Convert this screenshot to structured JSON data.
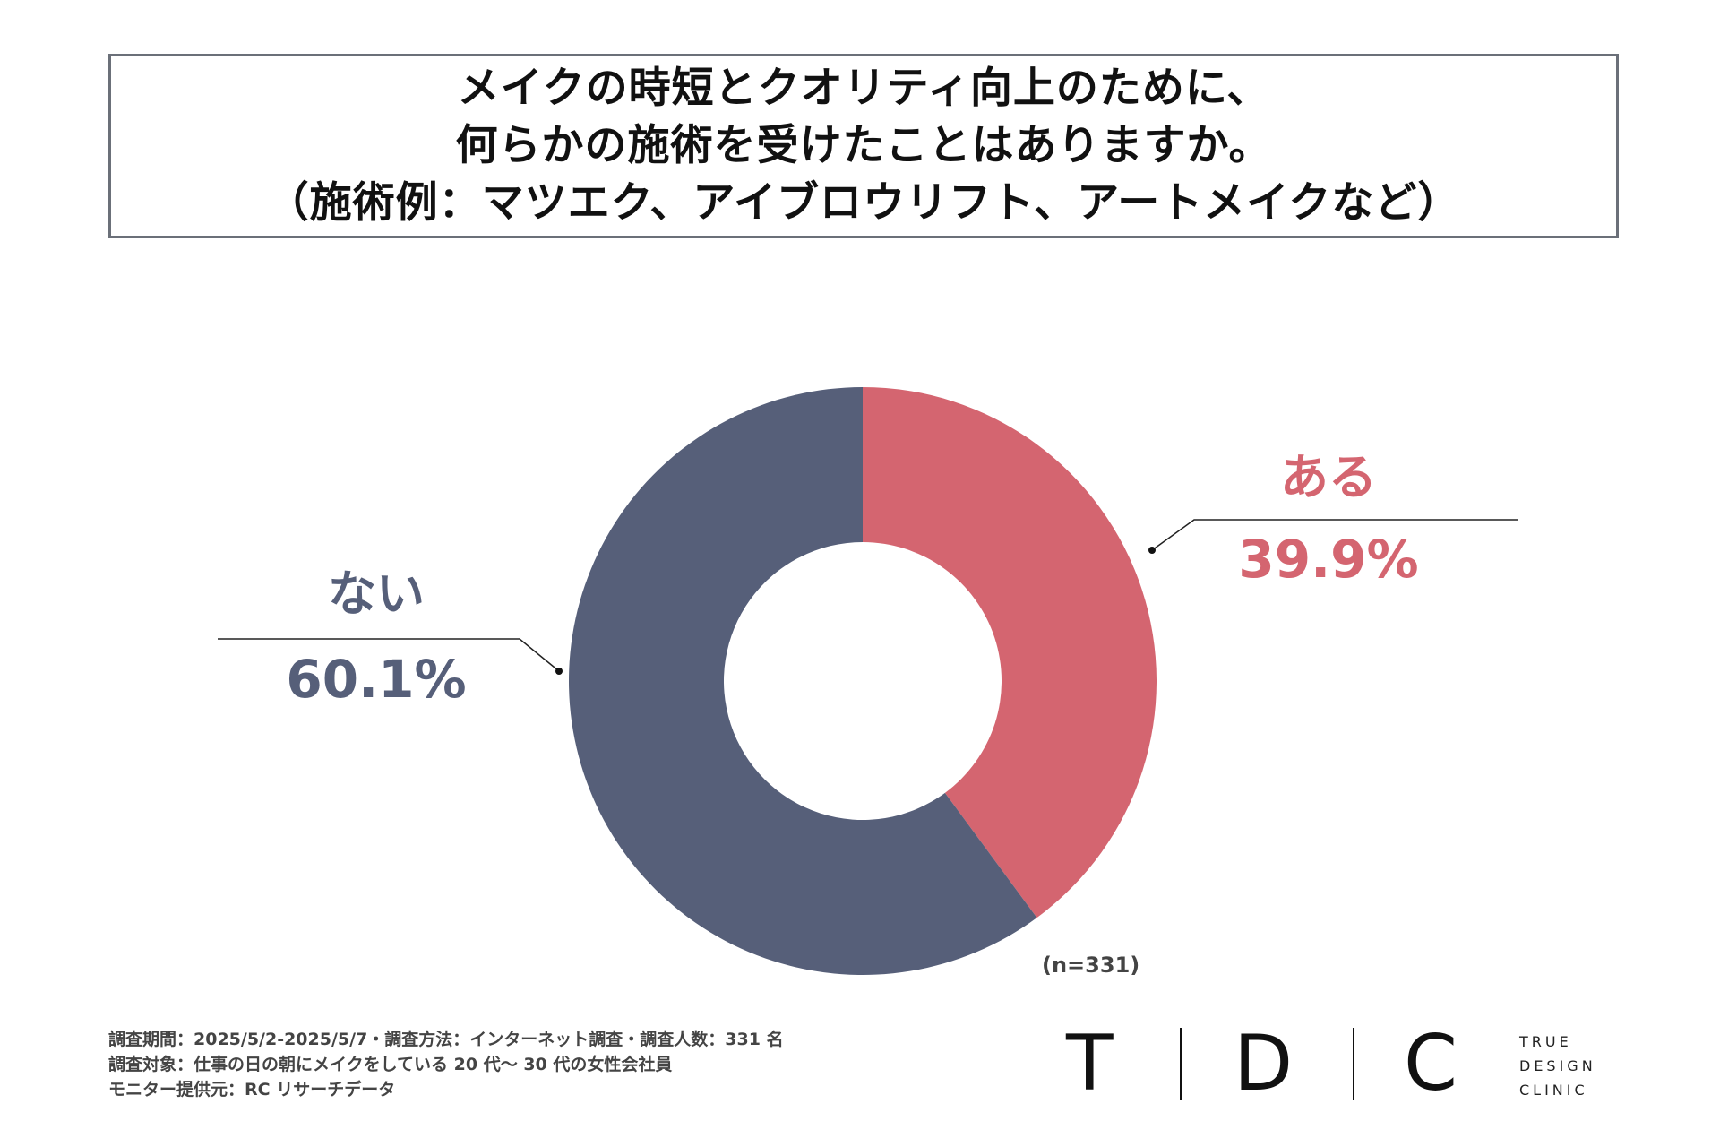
{
  "title": {
    "lines": [
      "メイクの時短とクオリティ向上のために、",
      "何らかの施術を受けたことはありますか。",
      "（施術例：マツエク、アイブロウリフト、アートメイクなど）"
    ]
  },
  "chart_data": {
    "type": "pie",
    "donut": true,
    "slices": [
      {
        "label": "ある",
        "value": 39.9,
        "value_label": "39.9%",
        "color": "#d46570"
      },
      {
        "label": "ない",
        "value": 60.1,
        "value_label": "60.1%",
        "color": "#565f79"
      }
    ],
    "note": "(n=331)"
  },
  "footnotes": [
    "調査期間：2025/5/2-2025/5/7・調査方法：インターネット調査・調査人数：331 名",
    "調査対象：仕事の日の朝にメイクをしている 20 代〜 30 代の女性会社員",
    "モニター提供元：RC リサーチデータ"
  ],
  "logo": {
    "letters": [
      "T",
      "D",
      "C"
    ],
    "sub_lines": [
      "TRUE",
      "DESIGN",
      "CLINIC"
    ]
  }
}
